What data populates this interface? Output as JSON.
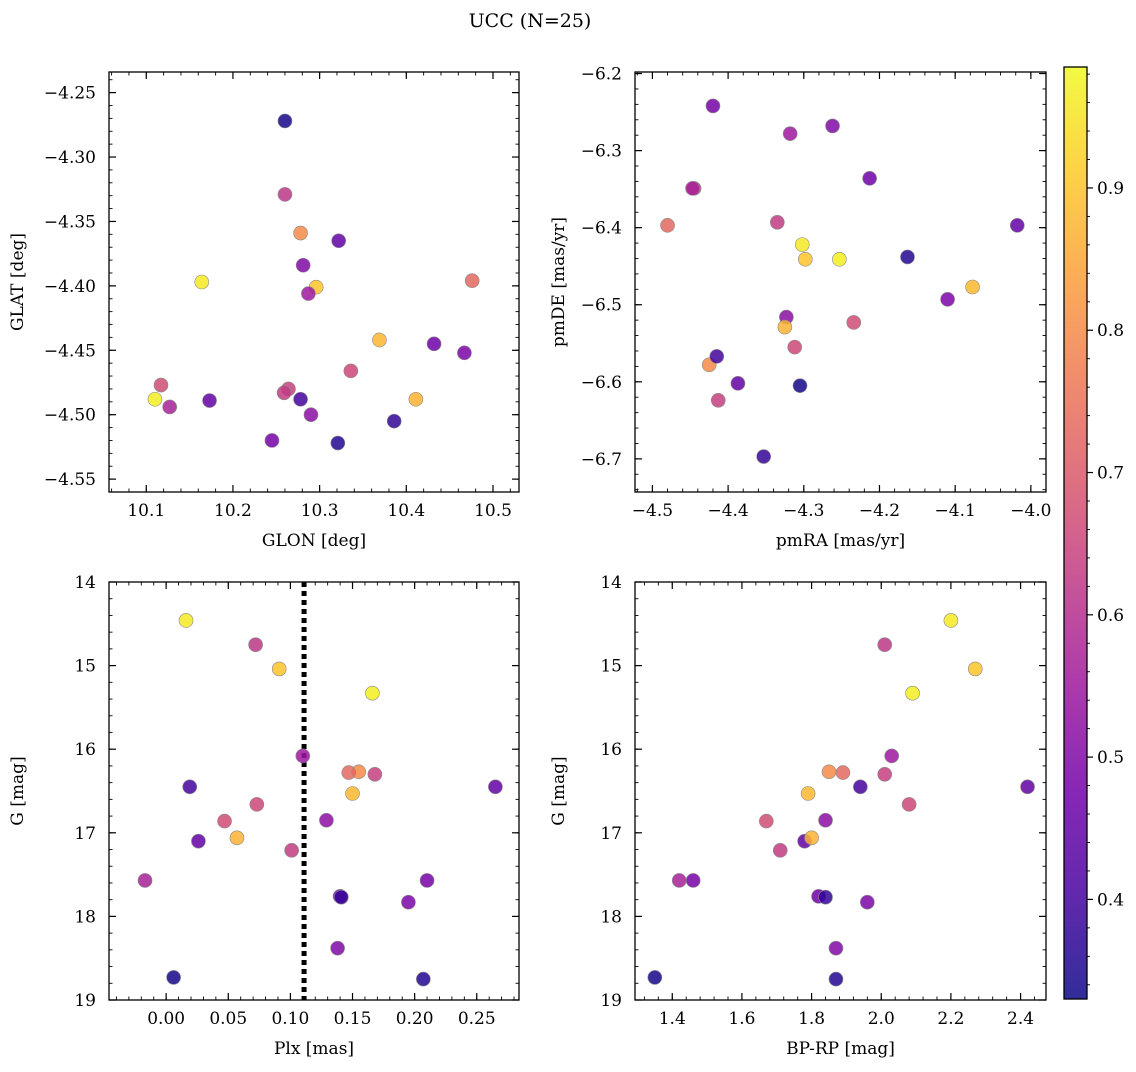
{
  "title": "UCC (N=25)",
  "colormap": {
    "name": "plasma",
    "min": 0.33,
    "max": 0.985,
    "ticks": [
      0.4,
      0.5,
      0.6,
      0.7,
      0.8,
      0.9
    ],
    "tick_labels": [
      "0.4",
      "0.5",
      "0.6",
      "0.7",
      "0.8",
      "0.9"
    ],
    "stops": [
      "#0d0887",
      "#46039f",
      "#7201a8",
      "#9c179e",
      "#bd3786",
      "#d8576b",
      "#ed7953",
      "#fb9f3a",
      "#fdca26",
      "#f0f921"
    ]
  },
  "stars": [
    {
      "glon": 10.26,
      "glat": -4.272,
      "pmra": -4.305,
      "pmde": -6.605,
      "plx": 0.006,
      "g": 18.73,
      "bprp": 1.35,
      "p": 0.34
    },
    {
      "glon": 10.26,
      "glat": -4.329,
      "pmra": -4.445,
      "pmde": -6.349,
      "plx": 0.072,
      "g": 14.75,
      "bprp": 2.01,
      "p": 0.62
    },
    {
      "glon": 10.278,
      "glat": -4.359,
      "pmra": -4.425,
      "pmde": -6.578,
      "plx": 0.155,
      "g": 16.27,
      "bprp": 1.85,
      "p": 0.8
    },
    {
      "glon": 10.322,
      "glat": -4.365,
      "pmra": -4.018,
      "pmde": -6.397,
      "plx": 0.265,
      "g": 16.45,
      "bprp": 2.42,
      "p": 0.45
    },
    {
      "glon": 10.164,
      "glat": -4.397,
      "pmra": -4.302,
      "pmde": -6.422,
      "plx": 0.016,
      "g": 14.46,
      "bprp": 2.2,
      "p": 0.96
    },
    {
      "glon": 10.476,
      "glat": -4.396,
      "pmra": -4.48,
      "pmde": -6.397,
      "plx": 0.147,
      "g": 16.28,
      "bprp": 1.89,
      "p": 0.73
    },
    {
      "glon": 10.281,
      "glat": -4.384,
      "pmra": -4.262,
      "pmde": -6.268,
      "plx": 0.138,
      "g": 18.38,
      "bprp": 1.87,
      "p": 0.5
    },
    {
      "glon": 10.296,
      "glat": -4.401,
      "pmra": -4.298,
      "pmde": -6.441,
      "plx": 0.091,
      "g": 15.04,
      "bprp": 2.27,
      "p": 0.9
    },
    {
      "glon": 10.287,
      "glat": -4.406,
      "pmra": -4.318,
      "pmde": -6.278,
      "plx": 0.11,
      "g": 16.08,
      "bprp": 2.03,
      "p": 0.55
    },
    {
      "glon": 10.369,
      "glat": -4.442,
      "pmra": -4.077,
      "pmde": -6.477,
      "plx": 0.15,
      "g": 16.53,
      "bprp": 1.79,
      "p": 0.88
    },
    {
      "glon": 10.432,
      "glat": -4.445,
      "pmra": -4.213,
      "pmde": -6.336,
      "plx": 0.14,
      "g": 17.76,
      "bprp": 1.82,
      "p": 0.47
    },
    {
      "glon": 10.467,
      "glat": -4.452,
      "pmra": -4.11,
      "pmde": -6.493,
      "plx": 0.195,
      "g": 17.83,
      "bprp": 1.96,
      "p": 0.49
    },
    {
      "glon": 10.336,
      "glat": -4.466,
      "pmra": -4.312,
      "pmde": -6.555,
      "plx": 0.073,
      "g": 16.66,
      "bprp": 2.08,
      "p": 0.66
    },
    {
      "glon": 10.117,
      "glat": -4.477,
      "pmra": -4.234,
      "pmde": -6.523,
      "plx": 0.047,
      "g": 16.86,
      "bprp": 1.67,
      "p": 0.67
    },
    {
      "glon": 10.11,
      "glat": -4.488,
      "pmra": -4.253,
      "pmde": -6.441,
      "plx": 0.166,
      "g": 15.33,
      "bprp": 2.09,
      "p": 0.97
    },
    {
      "glon": 10.127,
      "glat": -4.494,
      "pmra": -4.447,
      "pmde": -6.349,
      "plx": -0.017,
      "g": 17.57,
      "bprp": 1.42,
      "p": 0.57
    },
    {
      "glon": 10.173,
      "glat": -4.489,
      "pmra": -4.387,
      "pmde": -6.602,
      "plx": 0.026,
      "g": 17.1,
      "bprp": 1.78,
      "p": 0.45
    },
    {
      "glon": 10.264,
      "glat": -4.48,
      "pmra": -4.413,
      "pmde": -6.624,
      "plx": 0.168,
      "g": 16.3,
      "bprp": 2.01,
      "p": 0.64
    },
    {
      "glon": 10.259,
      "glat": -4.483,
      "pmra": -4.335,
      "pmde": -6.393,
      "plx": 0.101,
      "g": 17.21,
      "bprp": 1.71,
      "p": 0.63
    },
    {
      "glon": 10.278,
      "glat": -4.488,
      "pmra": -4.415,
      "pmde": -6.567,
      "plx": 0.019,
      "g": 16.45,
      "bprp": 1.94,
      "p": 0.4
    },
    {
      "glon": 10.29,
      "glat": -4.5,
      "pmra": -4.323,
      "pmde": -6.516,
      "plx": 0.129,
      "g": 16.85,
      "bprp": 1.84,
      "p": 0.52
    },
    {
      "glon": 10.411,
      "glat": -4.488,
      "pmra": -4.325,
      "pmde": -6.529,
      "plx": 0.057,
      "g": 17.06,
      "bprp": 1.8,
      "p": 0.87
    },
    {
      "glon": 10.245,
      "glat": -4.52,
      "pmra": -4.42,
      "pmde": -6.242,
      "plx": 0.21,
      "g": 17.57,
      "bprp": 1.46,
      "p": 0.48
    },
    {
      "glon": 10.321,
      "glat": -4.522,
      "pmra": -4.163,
      "pmde": -6.438,
      "plx": 0.207,
      "g": 18.75,
      "bprp": 1.87,
      "p": 0.36
    },
    {
      "glon": 10.386,
      "glat": -4.505,
      "pmra": -4.353,
      "pmde": -6.697,
      "plx": 0.141,
      "g": 17.77,
      "bprp": 1.84,
      "p": 0.38
    }
  ],
  "panels": [
    {
      "id": "glon-glat",
      "x_field": "glon",
      "y_field": "glat",
      "xlabel": "GLON [deg]",
      "ylabel": "GLAT [deg]",
      "xlim": [
        10.057,
        10.53
      ],
      "ylim": [
        -4.56,
        -4.234
      ],
      "y_inverted": false,
      "xticks": [
        10.1,
        10.2,
        10.3,
        10.4,
        10.5
      ],
      "xtick_labels": [
        "10.1",
        "10.2",
        "10.3",
        "10.4",
        "10.5"
      ],
      "yticks": [
        -4.25,
        -4.3,
        -4.35,
        -4.4,
        -4.45,
        -4.5,
        -4.55
      ],
      "ytick_labels": [
        "−4.25",
        "−4.30",
        "−4.35",
        "−4.40",
        "−4.45",
        "−4.50",
        "−4.55"
      ]
    },
    {
      "id": "pmra-pmde",
      "x_field": "pmra",
      "y_field": "pmde",
      "xlabel": "pmRA [mas/yr]",
      "ylabel": "pmDE [mas/yr]",
      "xlim": [
        -4.523,
        -3.98
      ],
      "ylim": [
        -6.743,
        -6.198
      ],
      "y_inverted": false,
      "xticks": [
        -4.5,
        -4.4,
        -4.3,
        -4.2,
        -4.1,
        -4.0
      ],
      "xtick_labels": [
        "−4.5",
        "−4.4",
        "−4.3",
        "−4.2",
        "−4.1",
        "−4.0"
      ],
      "yticks": [
        -6.2,
        -6.3,
        -6.4,
        -6.5,
        -6.6,
        -6.7
      ],
      "ytick_labels": [
        "−6.2",
        "−6.3",
        "−6.4",
        "−6.5",
        "−6.6",
        "−6.7"
      ]
    },
    {
      "id": "plx-g",
      "x_field": "plx",
      "y_field": "g",
      "xlabel": "Plx [mas]",
      "ylabel": "G [mag]",
      "xlim": [
        -0.046,
        0.284
      ],
      "ylim": [
        14.0,
        19.0
      ],
      "y_inverted": true,
      "xticks": [
        0.0,
        0.05,
        0.1,
        0.15,
        0.2,
        0.25
      ],
      "xtick_labels": [
        "0.00",
        "0.05",
        "0.10",
        "0.15",
        "0.20",
        "0.25"
      ],
      "yticks": [
        14,
        15,
        16,
        17,
        18,
        19
      ],
      "ytick_labels": [
        "14",
        "15",
        "16",
        "17",
        "18",
        "19"
      ],
      "vline": {
        "x": 0.111,
        "style": "dotted"
      }
    },
    {
      "id": "bprp-g",
      "x_field": "bprp",
      "y_field": "g",
      "xlabel": "BP-RP [mag]",
      "ylabel": "G [mag]",
      "xlim": [
        1.293,
        2.473
      ],
      "ylim": [
        14.0,
        19.0
      ],
      "y_inverted": true,
      "xticks": [
        1.4,
        1.6,
        1.8,
        2.0,
        2.2,
        2.4
      ],
      "xtick_labels": [
        "1.4",
        "1.6",
        "1.8",
        "2.0",
        "2.2",
        "2.4"
      ],
      "yticks": [
        14,
        15,
        16,
        17,
        18,
        19
      ],
      "ytick_labels": [
        "14",
        "15",
        "16",
        "17",
        "18",
        "19"
      ]
    }
  ],
  "chart_data": [
    {
      "type": "scatter",
      "title": "UCC (N=25)",
      "xlabel": "GLON [deg]",
      "ylabel": "GLAT [deg]",
      "xlim": [
        10.057,
        10.53
      ],
      "ylim": [
        -4.56,
        -4.234
      ],
      "x_field": "glon",
      "y_field": "glat",
      "color_field": "p",
      "n_points": 25
    },
    {
      "type": "scatter",
      "xlabel": "pmRA [mas/yr]",
      "ylabel": "pmDE [mas/yr]",
      "xlim": [
        -4.523,
        -3.98
      ],
      "ylim": [
        -6.743,
        -6.198
      ],
      "x_field": "pmra",
      "y_field": "pmde",
      "color_field": "p",
      "n_points": 25
    },
    {
      "type": "scatter",
      "xlabel": "Plx [mas]",
      "ylabel": "G [mag]",
      "xlim": [
        -0.046,
        0.284
      ],
      "ylim": [
        19.0,
        14.0
      ],
      "x_field": "plx",
      "y_field": "g",
      "color_field": "p",
      "vline_x": 0.111,
      "n_points": 25
    },
    {
      "type": "scatter",
      "xlabel": "BP-RP [mag]",
      "ylabel": "G [mag]",
      "xlim": [
        1.293,
        2.473
      ],
      "ylim": [
        19.0,
        14.0
      ],
      "x_field": "bprp",
      "y_field": "g",
      "color_field": "p",
      "n_points": 25
    }
  ]
}
